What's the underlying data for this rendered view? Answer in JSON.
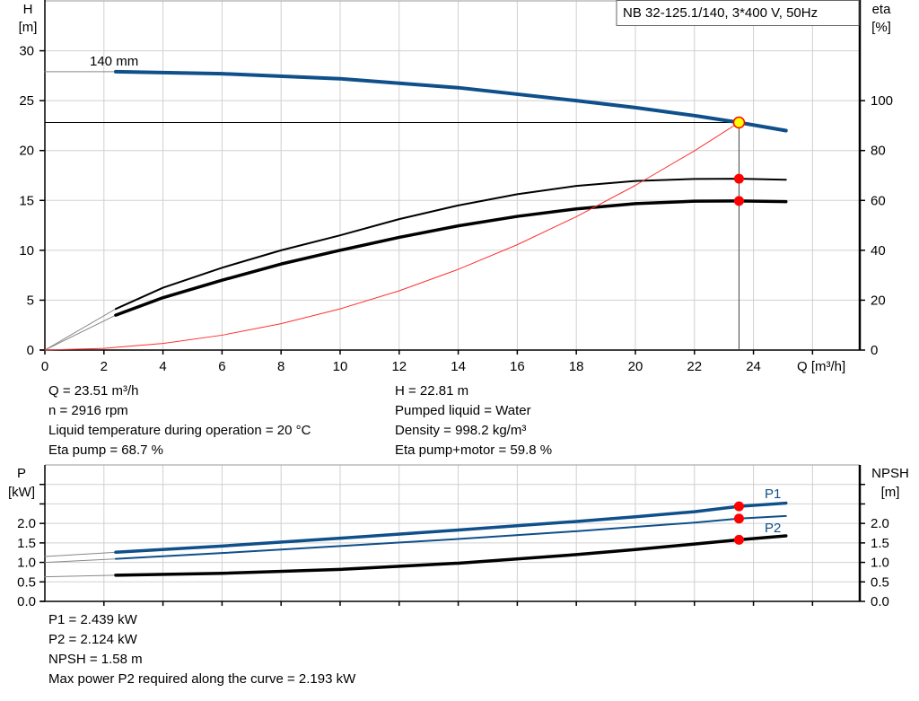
{
  "chart_data": [
    {
      "type": "line",
      "legend_box": "NB 32-125.1/140, 3*400 V, 50Hz",
      "xlabel": "Q [m³/h]",
      "ylabel": [
        "H",
        "[m]"
      ],
      "y2label": [
        "eta",
        "[%]"
      ],
      "xlim": [
        0,
        27.6
      ],
      "ylim": [
        0,
        35
      ],
      "y2lim": [
        0,
        140
      ],
      "xticks": [
        0,
        2,
        4,
        6,
        8,
        10,
        12,
        14,
        16,
        18,
        20,
        22,
        24
      ],
      "yticks": [
        0,
        5,
        10,
        15,
        20,
        25,
        30
      ],
      "y2ticks": [
        0,
        20,
        40,
        60,
        80,
        100
      ],
      "grid": true,
      "curve_label": "140 mm",
      "series": [
        {
          "name": "140 mm",
          "axis": "H",
          "color": "#0f4f8a",
          "x": [
            2.4,
            6,
            10,
            14,
            18,
            20,
            22,
            23.51,
            25.1
          ],
          "y": [
            27.9,
            27.7,
            27.2,
            26.3,
            25.0,
            24.3,
            23.5,
            22.81,
            22.0
          ],
          "extension": {
            "x": [
              0,
              2.4
            ],
            "y": [
              27.9,
              27.9
            ]
          }
        },
        {
          "axis": "eta",
          "color": "#000000",
          "x": [
            2.4,
            4,
            6,
            8,
            10,
            12,
            14,
            16,
            18,
            20,
            22,
            23.51,
            25.1
          ],
          "y": [
            16.5,
            25,
            33,
            40,
            46,
            52.5,
            58,
            62.5,
            65.8,
            67.8,
            68.6,
            68.7,
            68.3
          ],
          "extension": {
            "x": [
              0,
              2.4
            ],
            "y": [
              0,
              16.5
            ]
          }
        },
        {
          "axis": "eta",
          "color": "#000000",
          "x": [
            2.4,
            4,
            6,
            8,
            10,
            12,
            14,
            16,
            18,
            20,
            22,
            23.51,
            25.1
          ],
          "y": [
            14,
            21,
            28,
            34.5,
            40,
            45.2,
            49.8,
            53.6,
            56.6,
            58.7,
            59.7,
            59.8,
            59.5
          ],
          "extension": {
            "x": [
              0,
              2.4
            ],
            "y": [
              0,
              14
            ]
          }
        },
        {
          "axis": "H",
          "color": "#ff3030",
          "kind": "system-curve",
          "x": [
            0,
            2,
            4,
            6,
            8,
            10,
            12,
            14,
            16,
            18,
            20,
            22,
            23.51
          ],
          "y": [
            0,
            0.17,
            0.66,
            1.49,
            2.64,
            4.13,
            5.94,
            8.09,
            10.56,
            13.37,
            16.51,
            19.97,
            22.81
          ]
        }
      ],
      "operating_point": {
        "Q": 23.51,
        "H": 22.81,
        "eta_pump": 68.7,
        "eta_pump_motor": 59.8
      }
    },
    {
      "type": "line",
      "ylabel": [
        "P",
        "[kW]"
      ],
      "y2label": [
        "NPSH",
        "[m]"
      ],
      "xlim": [
        0,
        27.6
      ],
      "ylim": [
        0,
        3.5
      ],
      "yticks": [
        0.0,
        0.5,
        1.0,
        1.5,
        2.0
      ],
      "ytick_labels": [
        "0.0",
        "0.5",
        "1.0",
        "1.5",
        "2.0"
      ],
      "grid": true,
      "series": [
        {
          "name": "P1",
          "color": "#0f4f8a",
          "x": [
            2.4,
            6,
            10,
            14,
            18,
            20,
            22,
            23.51,
            25.1
          ],
          "y": [
            1.26,
            1.42,
            1.62,
            1.83,
            2.05,
            2.17,
            2.3,
            2.439,
            2.52
          ],
          "extension": {
            "x": [
              0,
              2.4
            ],
            "y": [
              1.15,
              1.26
            ]
          }
        },
        {
          "name": "P2",
          "color": "#0f4f8a",
          "x": [
            2.4,
            6,
            10,
            14,
            18,
            20,
            22,
            23.51,
            25.1
          ],
          "y": [
            1.09,
            1.24,
            1.42,
            1.6,
            1.8,
            1.91,
            2.02,
            2.124,
            2.19
          ],
          "extension": {
            "x": [
              0,
              2.4
            ],
            "y": [
              1.0,
              1.09
            ]
          }
        },
        {
          "name": "NPSH",
          "color": "#000000",
          "x": [
            2.4,
            6,
            10,
            14,
            18,
            20,
            22,
            23.51,
            25.1
          ],
          "y": [
            0.67,
            0.72,
            0.82,
            0.98,
            1.2,
            1.33,
            1.47,
            1.58,
            1.68
          ],
          "extension": {
            "x": [
              0,
              2.4
            ],
            "y": [
              0.63,
              0.67
            ]
          }
        }
      ],
      "operating_point": {
        "Q": 23.51,
        "P1": 2.439,
        "P2": 2.124,
        "NPSH": 1.58
      }
    }
  ],
  "info_top": {
    "left": [
      "Q = 23.51 m³/h",
      "n = 2916 rpm",
      "Liquid temperature during operation = 20 °C",
      "Eta pump = 68.7 %"
    ],
    "right": [
      "H = 22.81 m",
      "Pumped liquid = Water",
      "Density = 998.2 kg/m³",
      "Eta pump+motor = 59.8 %"
    ]
  },
  "info_bottom": [
    "P1 = 2.439 kW",
    "P2 = 2.124 kW",
    "NPSH = 1.58 m",
    "Max power P2 required along the curve = 2.193 kW"
  ],
  "colors": {
    "operating_point_fill": "#ffff00",
    "marker": "#ff0000",
    "grid": "#d0d0d0"
  }
}
